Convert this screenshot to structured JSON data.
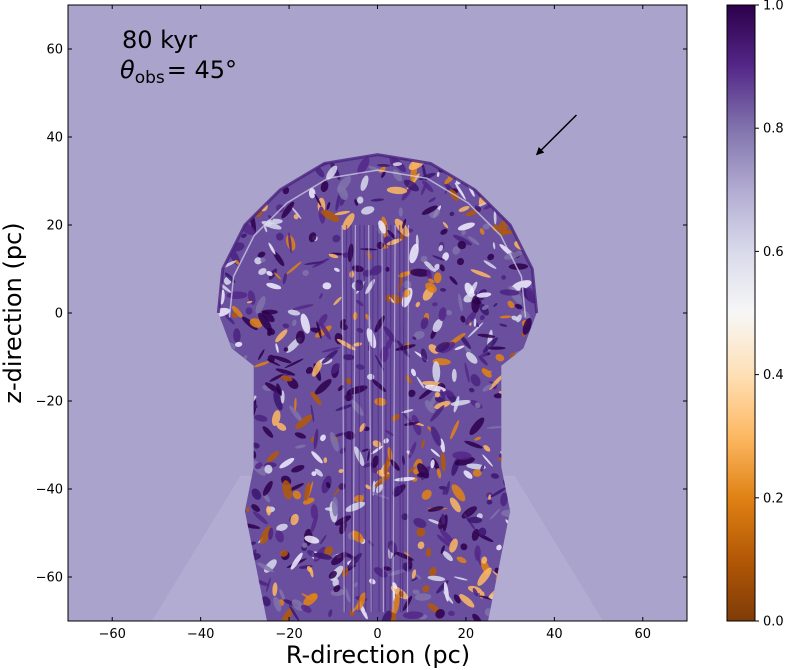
{
  "chart_data": {
    "type": "heatmap",
    "title": "",
    "xlabel": "R-direction (pc)",
    "ylabel": "z-direction (pc)",
    "xlim": [
      -70,
      70
    ],
    "ylim": [
      -70,
      70
    ],
    "xticks": [
      -60,
      -40,
      -20,
      0,
      20,
      40,
      60
    ],
    "yticks": [
      -60,
      -40,
      -20,
      0,
      20,
      40,
      60
    ],
    "xtick_labels": [
      "−60",
      "−40",
      "−20",
      "0",
      "20",
      "40",
      "60"
    ],
    "ytick_labels": [
      "−60",
      "−40",
      "−20",
      "0",
      "20",
      "40",
      "60"
    ],
    "annotations": {
      "time": "80 kyr",
      "angle_symbol": "θ",
      "angle_subscript": "obs",
      "angle_value": "= 45°"
    },
    "arrow": {
      "from": [
        45,
        45
      ],
      "to": [
        36,
        36
      ]
    },
    "colorbar": {
      "range": [
        0.0,
        1.0
      ],
      "ticks": [
        0.0,
        0.2,
        0.4,
        0.6,
        0.8,
        1.0
      ],
      "tick_labels": [
        "0.0",
        "0.2",
        "0.4",
        "0.6",
        "0.8",
        "1.0"
      ],
      "colormap": "PuOr",
      "colors": [
        "#7f3b08",
        "#b35806",
        "#e08214",
        "#fdb863",
        "#fee0b6",
        "#f7f7f7",
        "#d8daeb",
        "#b2abd2",
        "#8073ac",
        "#542788",
        "#2d004b"
      ]
    },
    "background_value": 0.7,
    "background_color": "#aaa4cc",
    "shell_outline": [
      [
        -36,
        0
      ],
      [
        -35,
        10
      ],
      [
        -30,
        20
      ],
      [
        -22,
        28
      ],
      [
        -12,
        34
      ],
      [
        0,
        36
      ],
      [
        12,
        34
      ],
      [
        22,
        28
      ],
      [
        30,
        20
      ],
      [
        35,
        10
      ],
      [
        36,
        0
      ],
      [
        33,
        -8
      ],
      [
        28,
        -12
      ],
      [
        28,
        -35
      ],
      [
        30,
        -45
      ],
      [
        28,
        -55
      ],
      [
        25,
        -70
      ],
      [
        -25,
        -70
      ],
      [
        -28,
        -55
      ],
      [
        -30,
        -45
      ],
      [
        -28,
        -35
      ],
      [
        -28,
        -12
      ],
      [
        -33,
        -8
      ]
    ],
    "cone_left": [
      [
        -51,
        -70
      ],
      [
        -31,
        -37
      ]
    ],
    "cone_right": [
      [
        51,
        -70
      ],
      [
        31,
        -37
      ]
    ]
  }
}
